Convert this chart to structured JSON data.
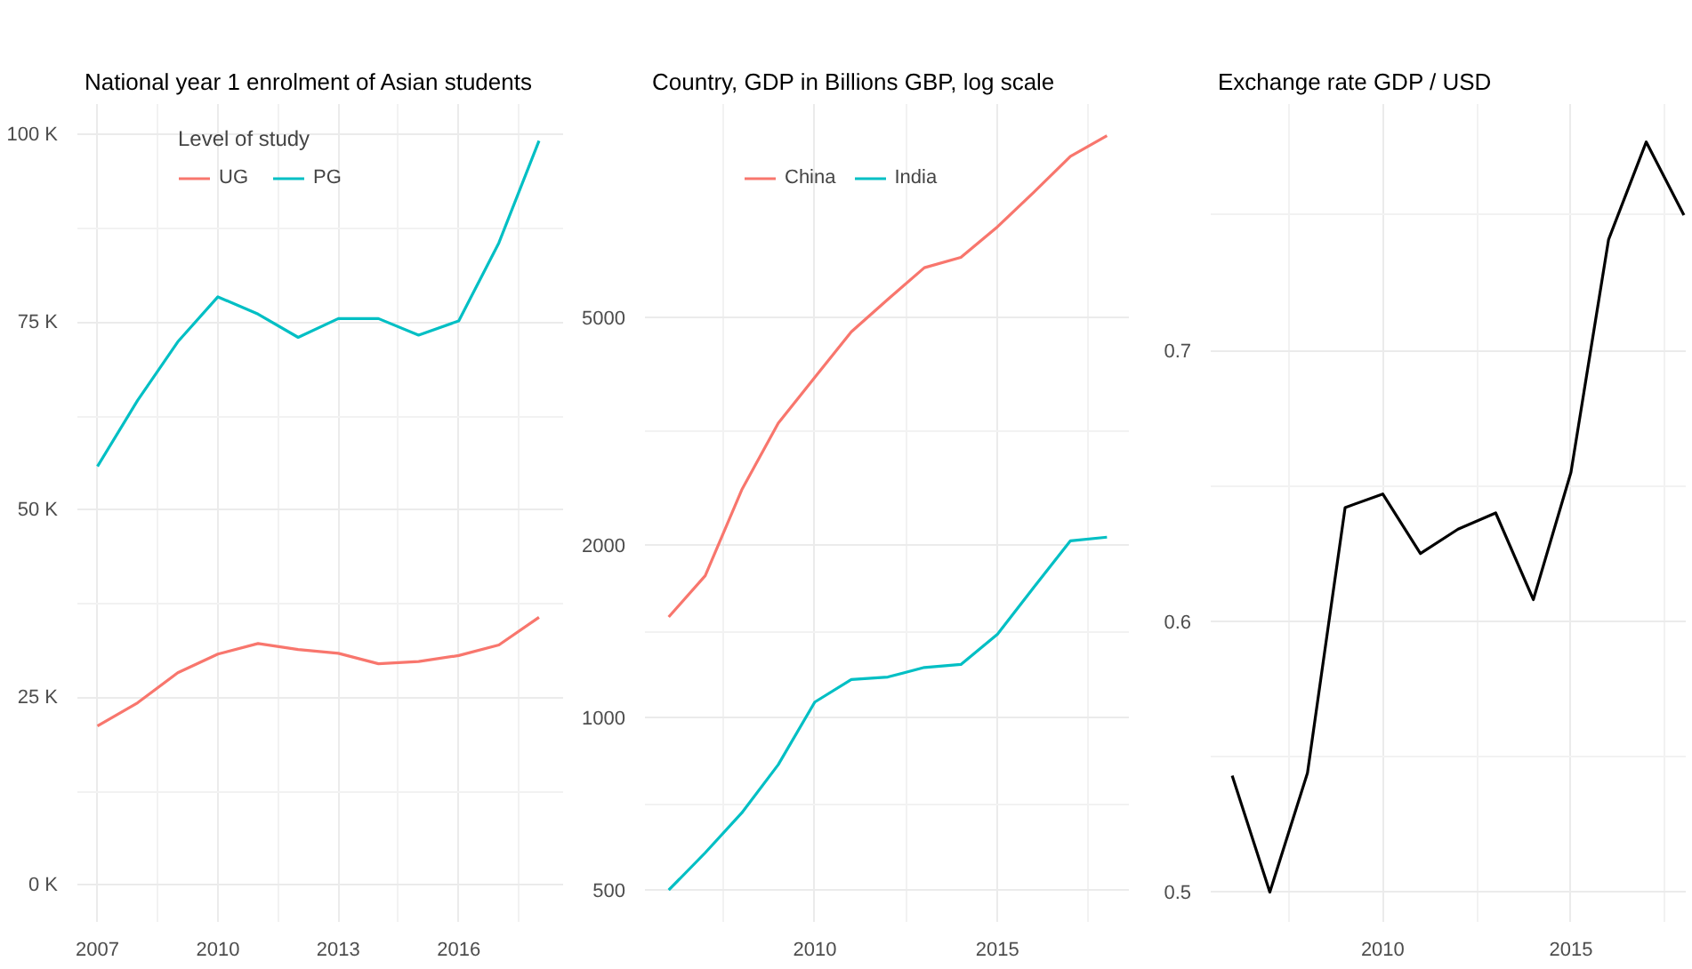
{
  "chart_data": [
    {
      "type": "line",
      "title": "National year 1 enrolment of Asian students",
      "legend_title": "Level of study",
      "legend": "top",
      "grid": true,
      "x": [
        2007,
        2008,
        2009,
        2010,
        2011,
        2012,
        2013,
        2014,
        2015,
        2016,
        2017,
        2018
      ],
      "xlim": [
        2006.5,
        2018.6
      ],
      "xticks": [
        2007,
        2010,
        2013,
        2016
      ],
      "ylim": [
        -4.9,
        104.1
      ],
      "yticks": [
        {
          "value": 0,
          "label": "0 K"
        },
        {
          "value": 25,
          "label": "25 K"
        },
        {
          "value": 50,
          "label": "50 K"
        },
        {
          "value": 75,
          "label": "75 K"
        },
        {
          "value": 100,
          "label": "100 K"
        }
      ],
      "series": [
        {
          "name": "UG",
          "color": "#f8766d",
          "values": [
            21.2,
            24.3,
            28.3,
            30.8,
            32.2,
            31.4,
            30.9,
            29.5,
            29.8,
            30.6,
            32.0,
            35.7
          ]
        },
        {
          "name": "PG",
          "color": "#00bfc4",
          "values": [
            55.8,
            64.6,
            72.4,
            78.4,
            76.1,
            73.0,
            75.5,
            75.5,
            73.3,
            75.2,
            85.6,
            99.2
          ]
        }
      ]
    },
    {
      "type": "line",
      "title": "Country, GDP in Billions GBP, log scale",
      "legend": "top",
      "grid": true,
      "log": "y",
      "x": [
        2006,
        2007,
        2008,
        2009,
        2010,
        2011,
        2012,
        2013,
        2014,
        2015,
        2016,
        2017,
        2018
      ],
      "xlim": [
        2005.35,
        2018.6
      ],
      "xticks": [
        2010,
        2015
      ],
      "ylim": [
        440,
        11800
      ],
      "yticks": [
        500,
        1000,
        2000,
        5000
      ],
      "series": [
        {
          "name": "China",
          "color": "#f8766d",
          "values": [
            1500,
            1770,
            2500,
            3270,
            3930,
            4720,
            5380,
            6110,
            6370,
            7200,
            8280,
            9560,
            10390
          ]
        },
        {
          "name": "India",
          "color": "#00bfc4",
          "values": [
            500,
            581,
            682,
            828,
            1065,
            1166,
            1178,
            1224,
            1239,
            1399,
            1690,
            2037,
            2067
          ]
        }
      ]
    },
    {
      "type": "line",
      "title": "Exchange rate GDP / USD",
      "grid": true,
      "x": [
        2006,
        2007,
        2008,
        2009,
        2010,
        2011,
        2012,
        2013,
        2014,
        2015,
        2016,
        2017,
        2018
      ],
      "xlim": [
        2005.43,
        2018.05
      ],
      "xticks": [
        2010,
        2015
      ],
      "ylim": [
        0.489,
        0.791
      ],
      "yticks": [
        0.5,
        0.6,
        0.7
      ],
      "series": [
        {
          "color": "#000000",
          "values": [
            0.543,
            0.5,
            0.544,
            0.642,
            0.647,
            0.625,
            0.634,
            0.64,
            0.608,
            0.655,
            0.741,
            0.777,
            0.75
          ]
        }
      ]
    }
  ]
}
